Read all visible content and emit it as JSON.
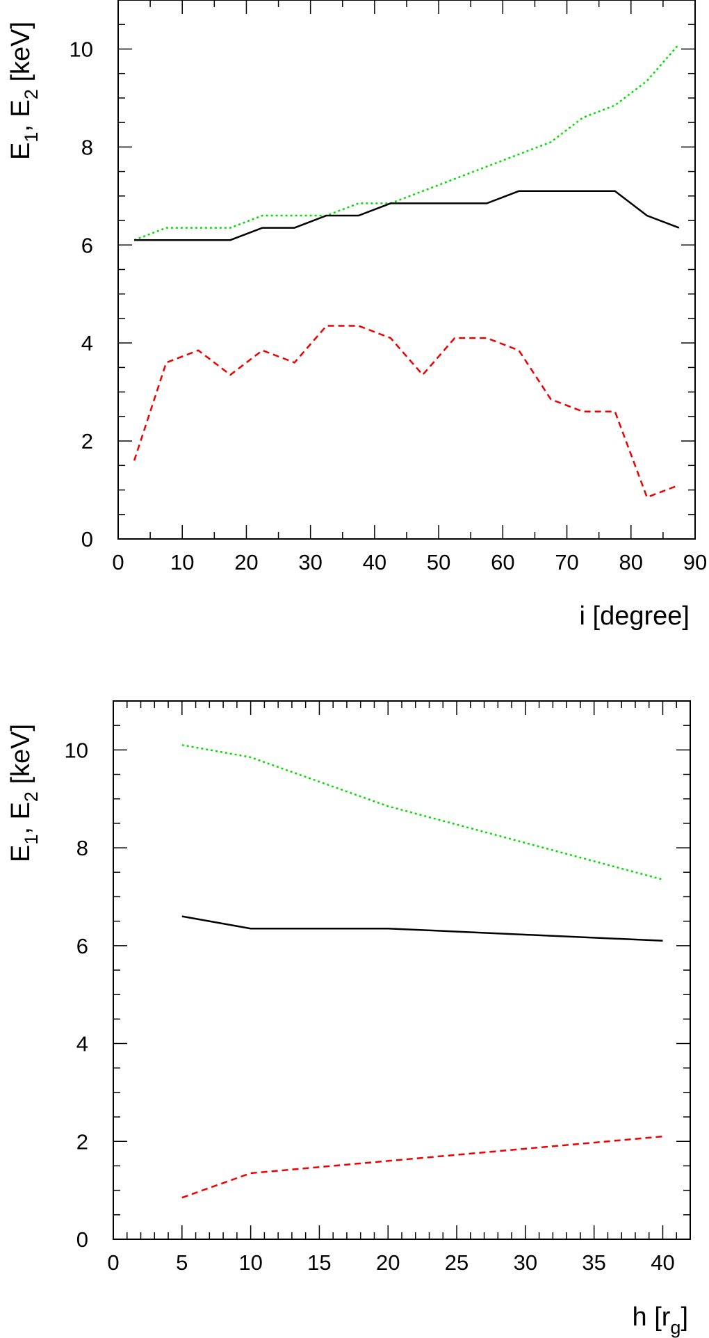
{
  "chart_data": [
    {
      "type": "line",
      "xlabel": "i [degree]",
      "ylabel": "E₁, E₂ [keV]",
      "xlim": [
        0,
        90
      ],
      "ylim": [
        0,
        11
      ],
      "xticks": [
        0,
        10,
        20,
        30,
        40,
        50,
        60,
        70,
        80,
        90
      ],
      "yticks": [
        0,
        2,
        4,
        6,
        8,
        10
      ],
      "grid": false,
      "series": [
        {
          "style": "dotted",
          "color": "#00dd00",
          "x": [
            2.5,
            7.5,
            12.5,
            17.5,
            22.5,
            27.5,
            32.5,
            37.5,
            42.5,
            47.5,
            52.5,
            57.5,
            62.5,
            67.5,
            72.5,
            77.5,
            82.5,
            87.5
          ],
          "y": [
            6.1,
            6.35,
            6.35,
            6.35,
            6.6,
            6.6,
            6.6,
            6.85,
            6.85,
            7.1,
            7.35,
            7.6,
            7.85,
            8.1,
            8.6,
            8.85,
            9.35,
            10.1
          ]
        },
        {
          "style": "solid",
          "color": "#000000",
          "x": [
            2.5,
            7.5,
            12.5,
            17.5,
            22.5,
            27.5,
            32.5,
            37.5,
            42.5,
            47.5,
            52.5,
            57.5,
            62.5,
            67.5,
            72.5,
            77.5,
            82.5,
            87.5
          ],
          "y": [
            6.1,
            6.1,
            6.1,
            6.1,
            6.35,
            6.35,
            6.6,
            6.6,
            6.85,
            6.85,
            6.85,
            6.85,
            7.1,
            7.1,
            7.1,
            7.1,
            6.6,
            6.35
          ]
        },
        {
          "style": "dashed",
          "color": "#ee0000",
          "x": [
            2.5,
            7.5,
            12.5,
            17.5,
            22.5,
            27.5,
            32.5,
            37.5,
            42.5,
            47.5,
            52.5,
            57.5,
            62.5,
            67.5,
            72.5,
            77.5,
            82.5,
            87.5
          ],
          "y": [
            1.6,
            3.6,
            3.85,
            3.35,
            3.85,
            3.6,
            4.35,
            4.35,
            4.1,
            3.35,
            4.1,
            4.1,
            3.85,
            2.85,
            2.6,
            2.6,
            0.85,
            1.1
          ]
        }
      ]
    },
    {
      "type": "line",
      "xlabel": "h [r_g]",
      "ylabel": "E₁, E₂ [keV]",
      "xlim": [
        0,
        42
      ],
      "ylim": [
        0,
        11
      ],
      "xticks": [
        0,
        5,
        10,
        15,
        20,
        25,
        30,
        35,
        40
      ],
      "yticks": [
        0,
        2,
        4,
        6,
        8,
        10
      ],
      "grid": false,
      "series": [
        {
          "style": "dotted",
          "color": "#00dd00",
          "x": [
            5,
            10,
            20,
            40
          ],
          "y": [
            10.1,
            9.85,
            8.85,
            7.35
          ]
        },
        {
          "style": "solid",
          "color": "#000000",
          "x": [
            5,
            10,
            20,
            40
          ],
          "y": [
            6.6,
            6.35,
            6.35,
            6.1
          ]
        },
        {
          "style": "dashed",
          "color": "#ee0000",
          "x": [
            5,
            10,
            20,
            40
          ],
          "y": [
            0.85,
            1.35,
            1.6,
            2.1
          ]
        }
      ]
    }
  ]
}
